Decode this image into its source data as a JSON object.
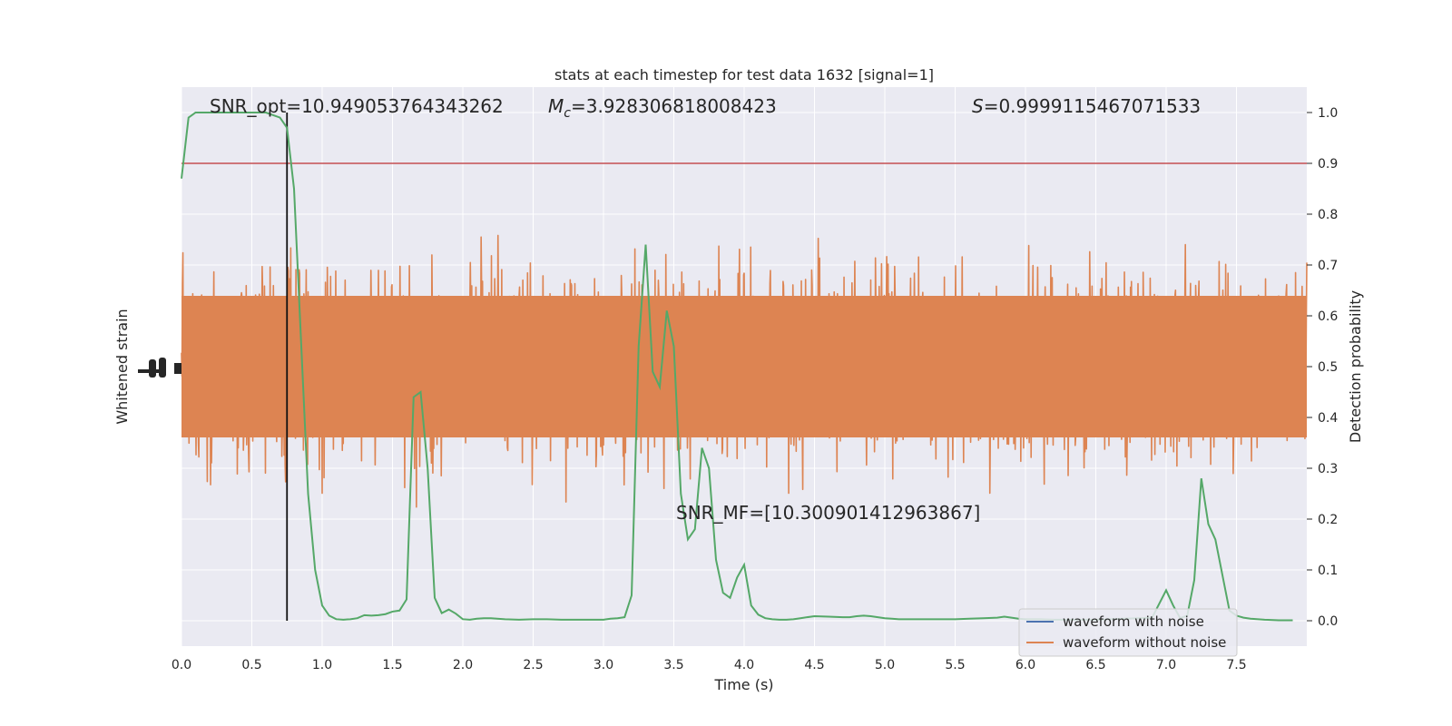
{
  "chart_data": {
    "type": "line",
    "title": "stats at each timestep for test data 1632 [signal=1]",
    "xlabel": "Time (s)",
    "ylabel_left": "Whitened strain",
    "ylabel_right": "Detection probability",
    "xlim": [
      0,
      8
    ],
    "ylim_right": [
      -0.05,
      1.05
    ],
    "xticks": [
      "0.0",
      "0.5",
      "1.0",
      "1.5",
      "2.0",
      "2.5",
      "3.0",
      "3.5",
      "4.0",
      "4.5",
      "5.0",
      "5.5",
      "6.0",
      "6.5",
      "7.0",
      "7.5"
    ],
    "yticks_right": [
      "0.0",
      "0.1",
      "0.2",
      "0.3",
      "0.4",
      "0.5",
      "0.6",
      "0.7",
      "0.8",
      "0.9",
      "1.0"
    ],
    "grid": true,
    "legend_position": "lower-right",
    "annotations": {
      "snr_opt": "SNR_opt=10.949053764343262",
      "mc_symbol": "M",
      "mc_sub": "c",
      "mc_value": "=3.928306818008423",
      "s_symbol": "S",
      "s_value": "=0.9999115467071533",
      "snr_mf": "SNR_MF=[10.300901412963867]"
    },
    "threshold": 0.9,
    "merger_time": 0.75,
    "series": [
      {
        "name": "waveform with noise",
        "color": "#4c72b0"
      },
      {
        "name": "waveform without noise",
        "color": "#dd8452"
      }
    ],
    "probability": {
      "color": "#55a868",
      "x": [
        0.0,
        0.05,
        0.1,
        0.15,
        0.2,
        0.3,
        0.4,
        0.5,
        0.55,
        0.6,
        0.65,
        0.7,
        0.75,
        0.8,
        0.85,
        0.9,
        0.95,
        1.0,
        1.05,
        1.1,
        1.15,
        1.2,
        1.25,
        1.3,
        1.35,
        1.4,
        1.45,
        1.5,
        1.55,
        1.6,
        1.65,
        1.7,
        1.75,
        1.8,
        1.85,
        1.9,
        1.95,
        2.0,
        2.05,
        2.1,
        2.15,
        2.2,
        2.3,
        2.4,
        2.5,
        2.6,
        2.7,
        2.8,
        2.9,
        3.0,
        3.05,
        3.1,
        3.15,
        3.2,
        3.25,
        3.3,
        3.35,
        3.4,
        3.45,
        3.5,
        3.55,
        3.6,
        3.65,
        3.7,
        3.75,
        3.8,
        3.85,
        3.9,
        3.95,
        4.0,
        4.05,
        4.1,
        4.15,
        4.2,
        4.25,
        4.3,
        4.35,
        4.4,
        4.5,
        4.6,
        4.7,
        4.75,
        4.8,
        4.85,
        4.9,
        4.95,
        5.0,
        5.05,
        5.1,
        5.2,
        5.3,
        5.4,
        5.5,
        5.6,
        5.7,
        5.8,
        5.85,
        5.9,
        5.95,
        6.0,
        6.1,
        6.2,
        6.3,
        6.4,
        6.5,
        6.6,
        6.7,
        6.8,
        6.9,
        7.0,
        7.05,
        7.1,
        7.15,
        7.2,
        7.25,
        7.3,
        7.35,
        7.4,
        7.45,
        7.5,
        7.55,
        7.6,
        7.7,
        7.8,
        7.9
      ],
      "y": [
        0.87,
        0.99,
        1.0,
        1.0,
        1.0,
        1.0,
        1.0,
        1.0,
        1.0,
        1.0,
        0.995,
        0.99,
        0.97,
        0.85,
        0.55,
        0.25,
        0.1,
        0.03,
        0.01,
        0.003,
        0.002,
        0.003,
        0.005,
        0.011,
        0.01,
        0.011,
        0.013,
        0.018,
        0.02,
        0.042,
        0.44,
        0.45,
        0.3,
        0.045,
        0.015,
        0.022,
        0.014,
        0.003,
        0.002,
        0.004,
        0.005,
        0.005,
        0.003,
        0.002,
        0.003,
        0.003,
        0.002,
        0.002,
        0.002,
        0.002,
        0.004,
        0.005,
        0.007,
        0.05,
        0.54,
        0.74,
        0.49,
        0.46,
        0.61,
        0.54,
        0.25,
        0.16,
        0.18,
        0.34,
        0.3,
        0.12,
        0.055,
        0.045,
        0.085,
        0.11,
        0.03,
        0.012,
        0.005,
        0.003,
        0.002,
        0.002,
        0.003,
        0.005,
        0.009,
        0.008,
        0.007,
        0.007,
        0.009,
        0.01,
        0.009,
        0.007,
        0.005,
        0.004,
        0.003,
        0.003,
        0.003,
        0.003,
        0.003,
        0.004,
        0.005,
        0.006,
        0.008,
        0.006,
        0.004,
        0.003,
        0.003,
        0.002,
        0.002,
        0.002,
        0.002,
        0.003,
        0.004,
        0.005,
        0.006,
        0.06,
        0.03,
        0.005,
        0.01,
        0.08,
        0.28,
        0.19,
        0.16,
        0.09,
        0.02,
        0.01,
        0.006,
        0.004,
        0.002,
        0.001,
        0.001
      ]
    }
  }
}
